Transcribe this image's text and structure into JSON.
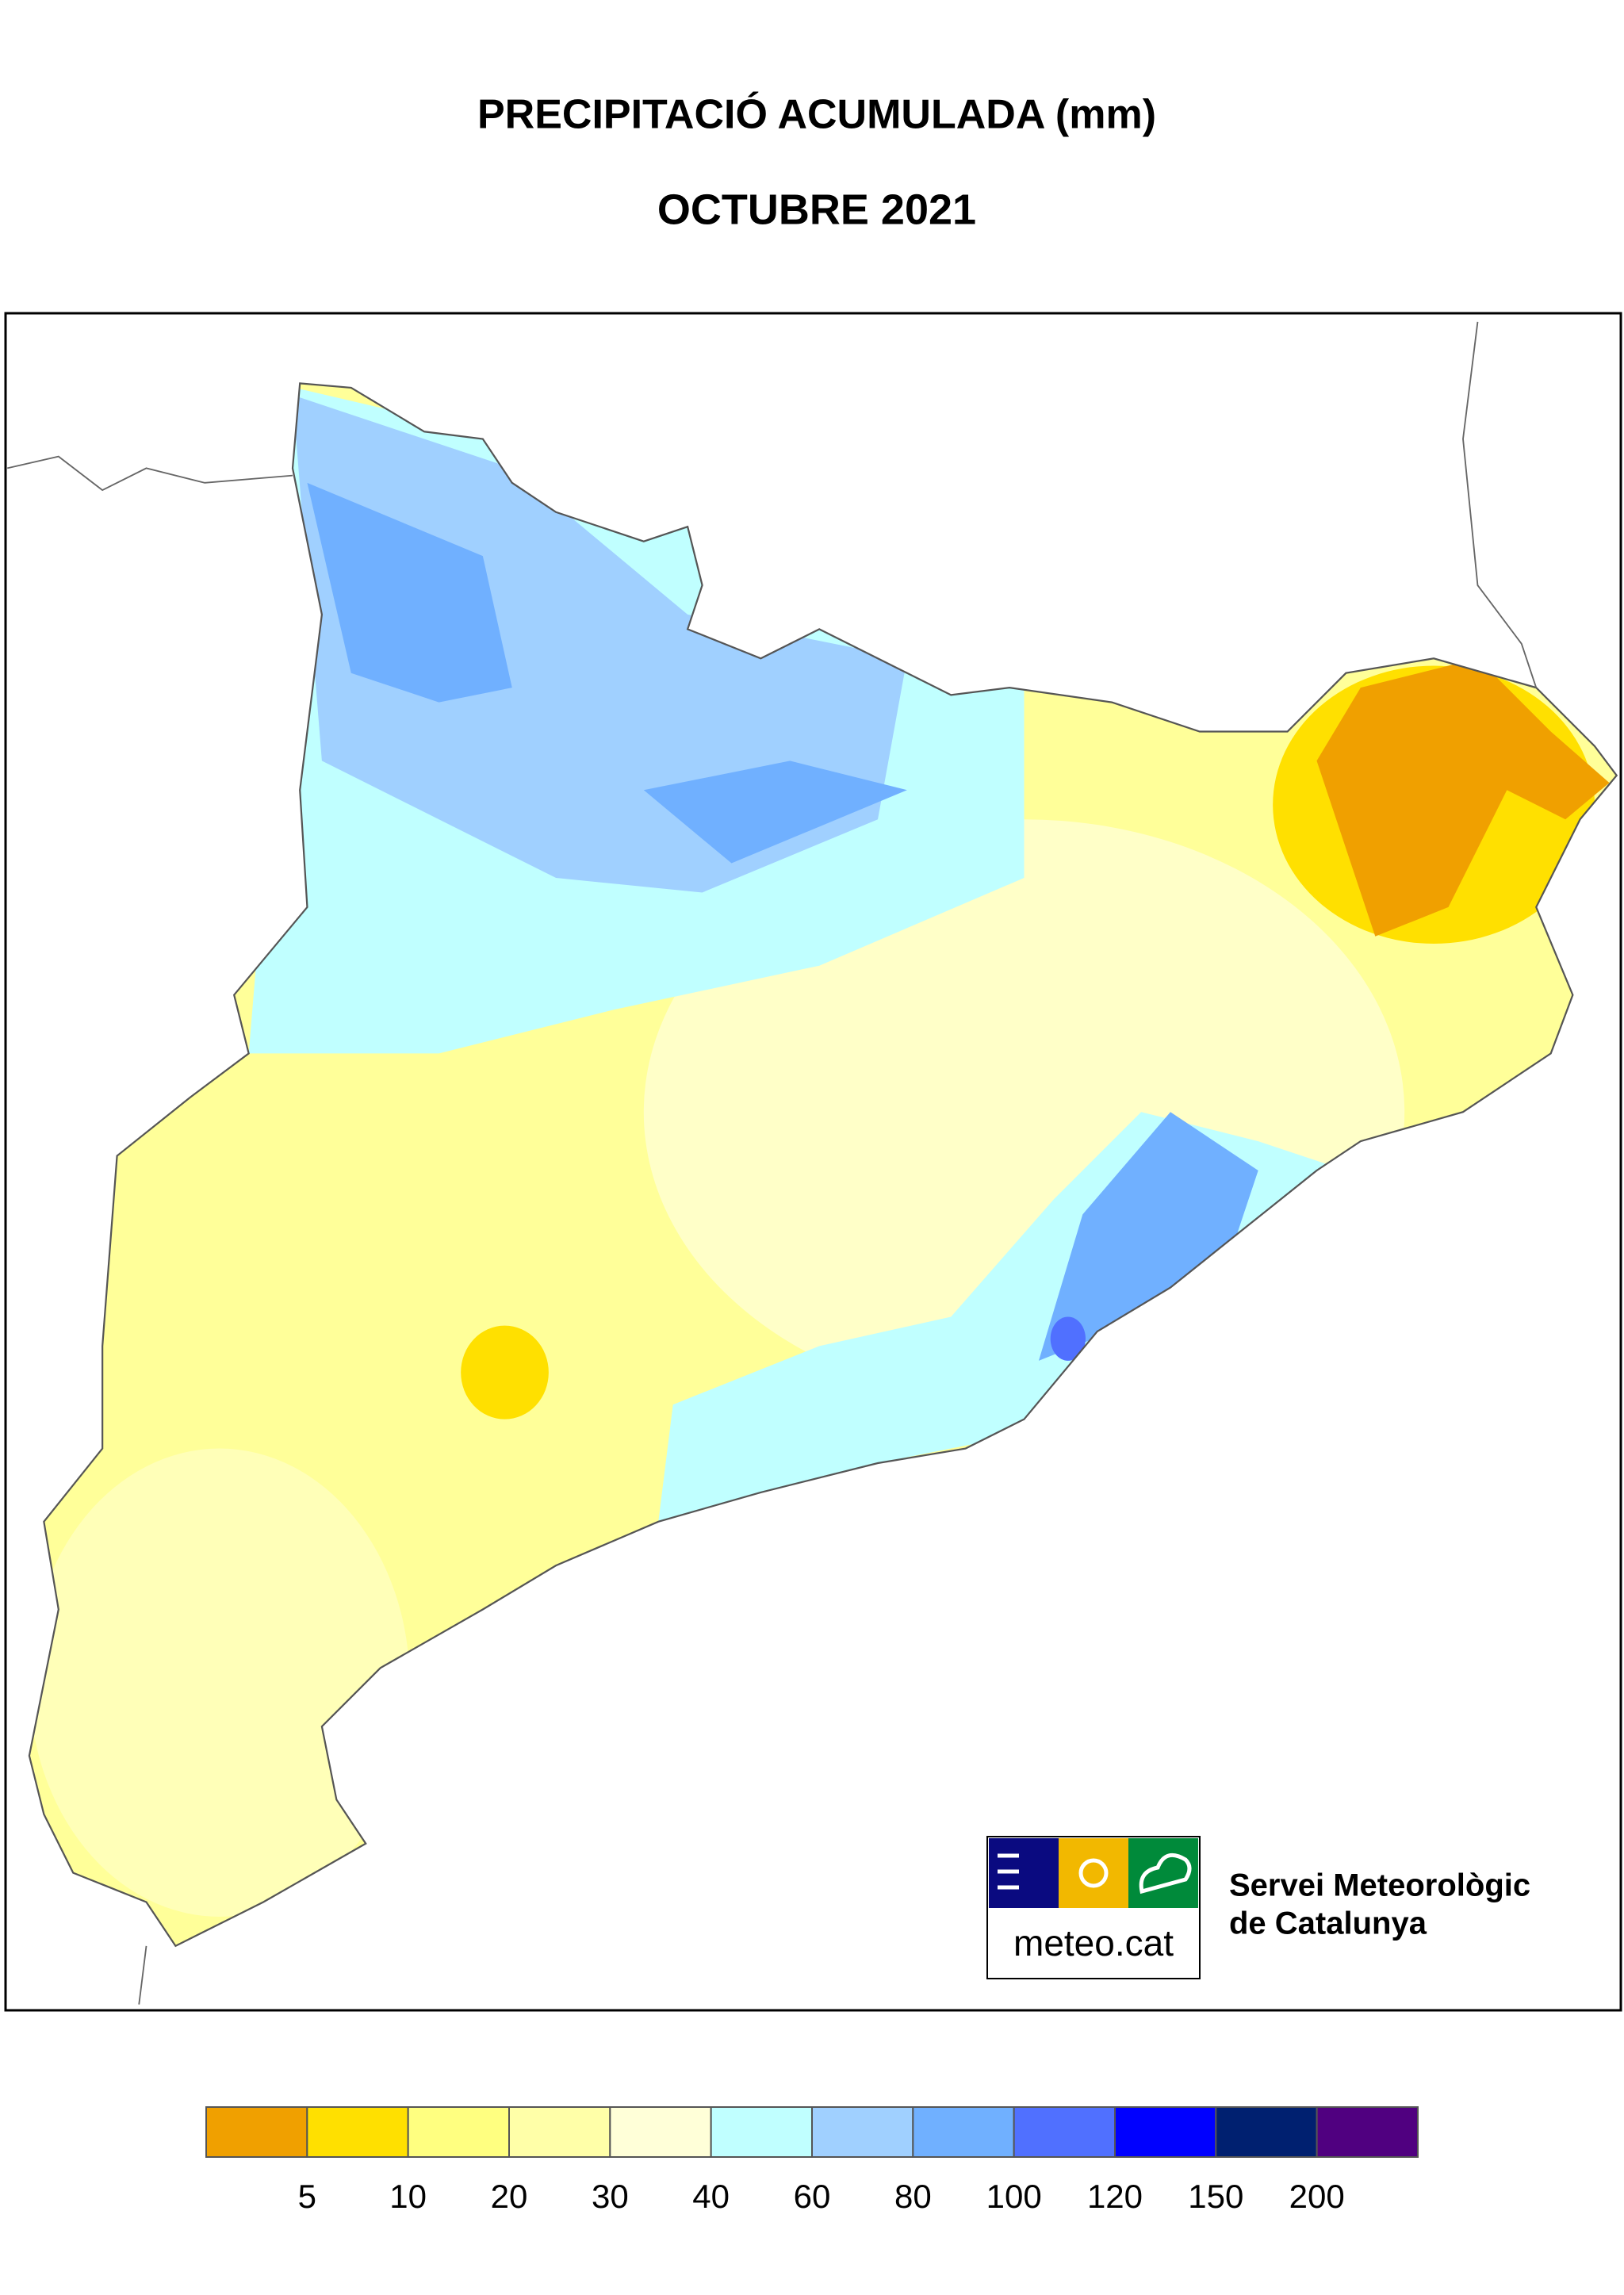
{
  "header": {
    "title": "PRECIPITACIÓ ACUMULADA (mm)",
    "subtitle": "OCTUBRE 2021"
  },
  "legend": {
    "colors": [
      "#f0a000",
      "#ffe000",
      "#ffff80",
      "#ffffa8",
      "#ffffd8",
      "#c0ffff",
      "#a0d0ff",
      "#70b0ff",
      "#5070ff",
      "#0000ff",
      "#002070",
      "#500080"
    ],
    "thresholds": [
      5,
      10,
      20,
      30,
      40,
      60,
      80,
      100,
      120,
      150,
      200
    ]
  },
  "logo": {
    "site": "meteo.cat",
    "name_line1": "Servei Meteorològic",
    "name_line2": "de Catalunya"
  }
}
